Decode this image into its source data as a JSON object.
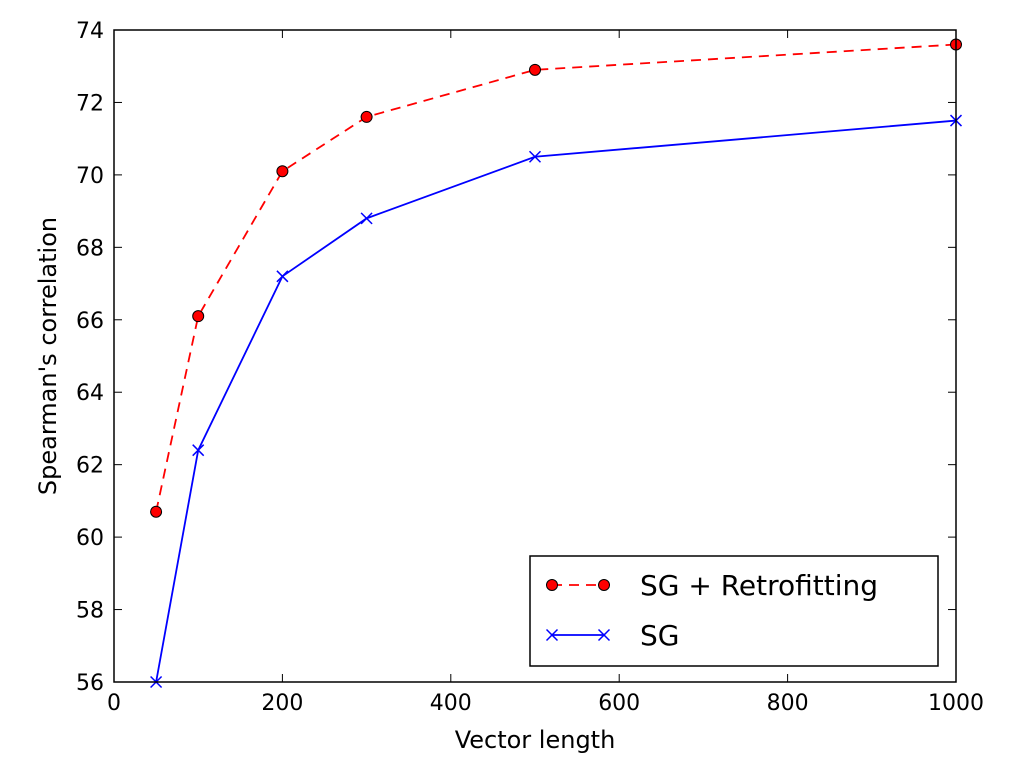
{
  "chart_data": {
    "type": "line",
    "xlabel": "Vector length",
    "ylabel": "Spearman's correlation",
    "xlim": [
      0,
      1000
    ],
    "ylim": [
      56,
      74
    ],
    "xticks": [
      0,
      200,
      400,
      600,
      800,
      1000
    ],
    "yticks": [
      56,
      58,
      60,
      62,
      64,
      66,
      68,
      70,
      72,
      74
    ],
    "grid": false,
    "legend": "lower-right",
    "series": [
      {
        "name": "SG + Retrofitting",
        "color": "#ff0000",
        "line_style": "dashed",
        "marker": "circle",
        "x": [
          50,
          100,
          200,
          300,
          500,
          1000
        ],
        "y": [
          60.7,
          66.1,
          70.1,
          71.6,
          72.9,
          73.6
        ]
      },
      {
        "name": "SG",
        "color": "#0000ff",
        "line_style": "solid",
        "marker": "x",
        "x": [
          50,
          100,
          200,
          300,
          500,
          1000
        ],
        "y": [
          56.0,
          62.4,
          67.2,
          68.8,
          70.5,
          71.5
        ]
      }
    ]
  }
}
